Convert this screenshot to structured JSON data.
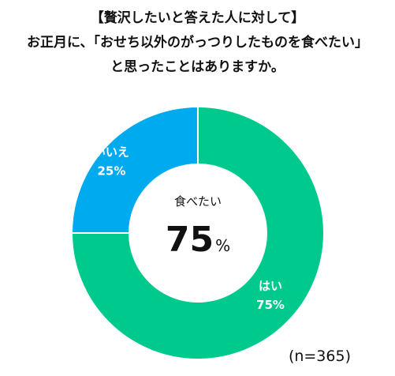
{
  "chart_data": {
    "type": "pie",
    "variant": "donut",
    "title_lines": [
      "【贅沢したいと答えた人に対して】",
      "お正月に、「おせち以外のがっつりしたものを食べたい」",
      "と思ったことはありますか。"
    ],
    "slices": [
      {
        "label": "はい",
        "value": 75,
        "value_label": "75%",
        "color": "#00c98d"
      },
      {
        "label": "いいえ",
        "value": 25,
        "value_label": "25%",
        "color": "#00aaee"
      }
    ],
    "center": {
      "caption": "食べたい",
      "number": "75",
      "unit": "%"
    },
    "sample_size": "(n=365)",
    "legend": "none"
  }
}
